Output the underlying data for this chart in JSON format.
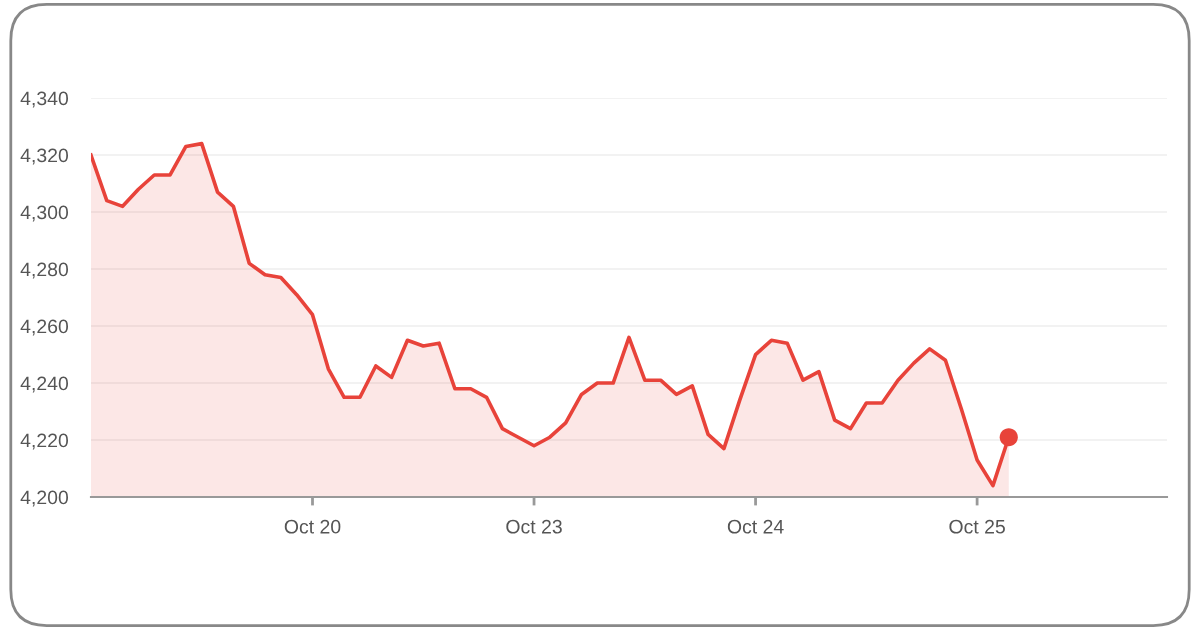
{
  "chart_data": {
    "type": "area",
    "categories": [
      null,
      null,
      null,
      null,
      null,
      null,
      null,
      null,
      null,
      null,
      null,
      null,
      null,
      null,
      "Oct 20",
      null,
      null,
      null,
      null,
      null,
      null,
      null,
      null,
      null,
      null,
      null,
      null,
      null,
      "Oct 23",
      null,
      null,
      null,
      null,
      null,
      null,
      null,
      null,
      null,
      null,
      null,
      null,
      null,
      "Oct 24",
      null,
      null,
      null,
      null,
      null,
      null,
      null,
      null,
      null,
      null,
      null,
      null,
      null,
      "Oct 25",
      null,
      null,
      null,
      null,
      null,
      null,
      null,
      null,
      null,
      null,
      null,
      null
    ],
    "series": [
      {
        "color": "#e8433a",
        "values": [
          4320,
          4304,
          4302,
          4308,
          4313,
          4313,
          4323,
          4324,
          4307,
          4302,
          4282,
          4278,
          4277,
          4271,
          4264,
          4245,
          4235,
          4235,
          4246,
          4242,
          4255,
          4253,
          4254,
          4238,
          4238,
          4235,
          4224,
          4221,
          4218,
          4221,
          4226,
          4236,
          4240,
          4240,
          4256,
          4241,
          4241,
          4236,
          4239,
          4222,
          4217,
          4234,
          4250,
          4255,
          4254,
          4241,
          4244,
          4227,
          4224,
          4233,
          4233,
          4241,
          4247,
          4252,
          4248,
          4231,
          4213,
          4204,
          4221,
          null,
          null,
          null,
          null,
          null,
          null,
          null,
          null,
          null,
          null
        ]
      },
      {
        "type": "scatter",
        "color": "#e8433a",
        "values": [
          null,
          null,
          null,
          null,
          null,
          null,
          null,
          null,
          null,
          null,
          null,
          null,
          null,
          null,
          null,
          null,
          null,
          null,
          null,
          null,
          null,
          null,
          null,
          null,
          null,
          null,
          null,
          null,
          null,
          null,
          null,
          null,
          null,
          null,
          null,
          null,
          null,
          null,
          null,
          null,
          null,
          null,
          null,
          null,
          null,
          null,
          null,
          null,
          null,
          null,
          null,
          null,
          null,
          null,
          null,
          null,
          null,
          null,
          4221,
          null,
          null,
          null,
          null,
          null,
          null,
          null,
          null,
          null,
          null
        ]
      }
    ],
    "ylim": [
      4200,
      4340
    ],
    "yticks": [
      {
        "value": 4200,
        "label": "4,200"
      },
      {
        "value": 4220,
        "label": "4,220"
      },
      {
        "value": 4240,
        "label": "4,240"
      },
      {
        "value": 4260,
        "label": "4,260"
      },
      {
        "value": 4280,
        "label": "4,280"
      },
      {
        "value": 4300,
        "label": "4,300"
      },
      {
        "value": 4320,
        "label": "4,320"
      },
      {
        "value": 4340,
        "label": "4,340"
      }
    ],
    "grid": "y",
    "legend": false
  }
}
